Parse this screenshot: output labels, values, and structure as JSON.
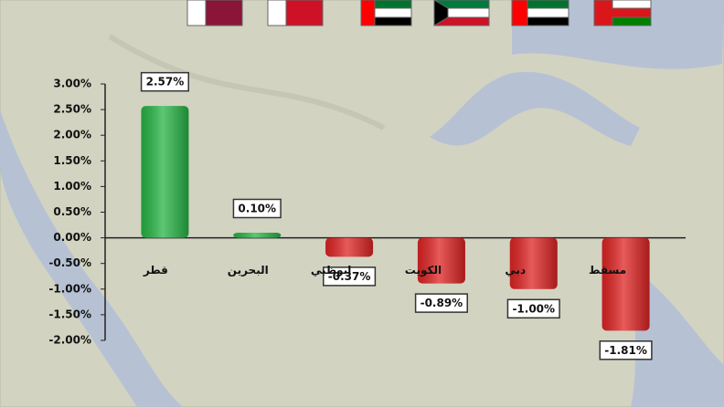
{
  "chart_data": {
    "type": "bar",
    "categories": [
      "قطر",
      "البحرين",
      "ابوظبي",
      "الكويت",
      "دبي",
      "مسقط"
    ],
    "values": [
      2.57,
      0.1,
      -0.37,
      -0.89,
      -1.0,
      -1.81
    ],
    "value_labels": [
      "2.57%",
      "0.10%",
      "-0.37%",
      "-0.89%",
      "-1.00%",
      "-1.81%"
    ],
    "colors": [
      "#27b545",
      "#27b545",
      "#e02424",
      "#e02424",
      "#e02424",
      "#e02424"
    ],
    "ylim": [
      -2,
      3
    ],
    "yticks": [
      {
        "value": 3,
        "label": "3.00%"
      },
      {
        "value": 2.5,
        "label": "2.50%"
      },
      {
        "value": 2,
        "label": "2.00%"
      },
      {
        "value": 1.5,
        "label": "1.50%"
      },
      {
        "value": 1,
        "label": "1.00%"
      },
      {
        "value": 0.5,
        "label": "0.50%"
      },
      {
        "value": 0,
        "label": "0.00%"
      },
      {
        "value": -0.5,
        "label": "-0.50%"
      },
      {
        "value": -1,
        "label": "-1.00%"
      },
      {
        "value": -1.5,
        "label": "-1.50%"
      },
      {
        "value": -2,
        "label": "-2.00%"
      }
    ],
    "grid": false
  }
}
